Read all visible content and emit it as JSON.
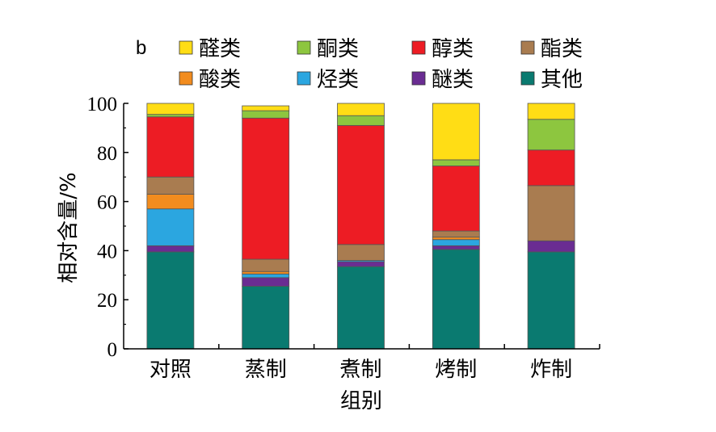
{
  "panel_label": "b",
  "chart_data": {
    "type": "bar",
    "stacked": true,
    "categories": [
      "对照",
      "蒸制",
      "煮制",
      "烤制",
      "炸制"
    ],
    "ylabel": "相对含量/%",
    "xlabel": "组别",
    "ylim": [
      0,
      100
    ],
    "yticks": [
      0,
      20,
      40,
      60,
      80,
      100
    ],
    "legend": {
      "position": "top",
      "columns": 4
    },
    "series": [
      {
        "name": "其他",
        "color": "#0a7a70",
        "values": [
          39.5,
          25.5,
          33.5,
          40.5,
          39.5
        ]
      },
      {
        "name": "醚类",
        "color": "#6a2c92",
        "values": [
          2.5,
          3.5,
          2.0,
          1.5,
          4.5
        ]
      },
      {
        "name": "烃类",
        "color": "#2ba6e0",
        "values": [
          15.0,
          1.5,
          0.5,
          2.5,
          0.0
        ]
      },
      {
        "name": "酸类",
        "color": "#f28c1e",
        "values": [
          6.0,
          1.0,
          0.0,
          1.0,
          0.0
        ]
      },
      {
        "name": "酯类",
        "color": "#a97c50",
        "values": [
          7.0,
          5.0,
          6.5,
          2.5,
          22.5
        ]
      },
      {
        "name": "醇类",
        "color": "#ed1c24",
        "values": [
          24.5,
          57.5,
          48.5,
          26.5,
          14.5
        ]
      },
      {
        "name": "酮类",
        "color": "#8dc63f",
        "values": [
          1.0,
          3.0,
          4.0,
          2.5,
          12.5
        ]
      },
      {
        "name": "醛类",
        "color": "#ffdd15",
        "values": [
          4.5,
          2.0,
          5.0,
          23.0,
          6.5
        ]
      }
    ],
    "legend_order": [
      "醛类",
      "酮类",
      "醇类",
      "酯类",
      "酸类",
      "烃类",
      "醚类",
      "其他"
    ]
  }
}
